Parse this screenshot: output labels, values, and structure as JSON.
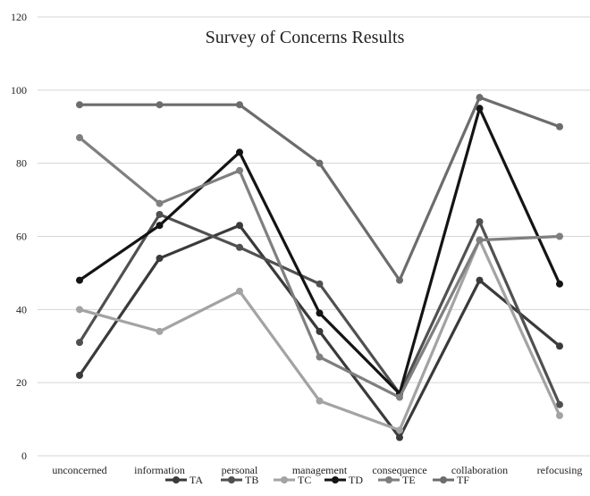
{
  "chart_data": {
    "type": "line",
    "title": "Survey of Concerns Results",
    "xlabel": "",
    "ylabel": "",
    "ylim": [
      0,
      120
    ],
    "yticks": [
      0,
      20,
      40,
      60,
      80,
      100,
      120
    ],
    "grid": "horizontal",
    "legend_position": "bottom",
    "categories": [
      "unconcerned",
      "information",
      "personal",
      "management",
      "consequence",
      "collaboration",
      "refocusing"
    ],
    "series": [
      {
        "name": "TA",
        "color": "#3a3a3a",
        "values": [
          22,
          54,
          63,
          34,
          5,
          48,
          30
        ]
      },
      {
        "name": "TB",
        "color": "#505050",
        "values": [
          31,
          66,
          57,
          47,
          17,
          64,
          14
        ]
      },
      {
        "name": "TC",
        "color": "#a3a3a3",
        "values": [
          40,
          34,
          45,
          15,
          7,
          59,
          11
        ]
      },
      {
        "name": "TD",
        "color": "#141414",
        "values": [
          48,
          63,
          83,
          39,
          17,
          95,
          47
        ]
      },
      {
        "name": "TE",
        "color": "#7f7f7f",
        "values": [
          87,
          69,
          78,
          27,
          16,
          59,
          60
        ]
      },
      {
        "name": "TF",
        "color": "#6c6c6c",
        "values": [
          96,
          96,
          96,
          80,
          48,
          98,
          90
        ]
      }
    ]
  }
}
